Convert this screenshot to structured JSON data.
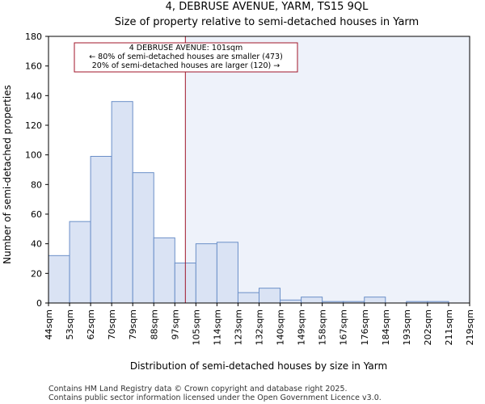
{
  "chart_data": {
    "type": "histogram",
    "title": "4, DEBRUSE AVENUE, YARM, TS15 9QL",
    "subtitle": "Size of property relative to semi-detached houses in Yarm",
    "xlabel": "Distribution of semi-detached houses by size in Yarm",
    "ylabel": "Number of semi-detached properties",
    "ylim": [
      0,
      180
    ],
    "yticks": [
      0,
      20,
      40,
      60,
      80,
      100,
      120,
      140,
      160,
      180
    ],
    "categories": [
      "44sqm",
      "53sqm",
      "62sqm",
      "70sqm",
      "79sqm",
      "88sqm",
      "97sqm",
      "105sqm",
      "114sqm",
      "123sqm",
      "132sqm",
      "140sqm",
      "149sqm",
      "158sqm",
      "167sqm",
      "176sqm",
      "184sqm",
      "193sqm",
      "202sqm",
      "211sqm",
      "219sqm"
    ],
    "values": [
      32,
      55,
      99,
      136,
      88,
      44,
      27,
      40,
      41,
      7,
      10,
      2,
      4,
      1,
      1,
      4,
      0,
      1,
      1,
      0
    ],
    "marker": {
      "position_bin": 6.5,
      "label": "4 DEBRUSE AVENUE: 101sqm",
      "line1": "← 80% of semi-detached houses are smaller (473)",
      "line2": "20% of semi-detached houses are larger (120) →"
    },
    "colors": {
      "bar_fill": "#dae3f4",
      "bar_stroke": "#6b8fc8",
      "marker": "#a0162a",
      "highlight": "#eef2fa"
    }
  },
  "footer": {
    "line1": "Contains HM Land Registry data © Crown copyright and database right 2025.",
    "line2": "Contains public sector information licensed under the Open Government Licence v3.0."
  }
}
